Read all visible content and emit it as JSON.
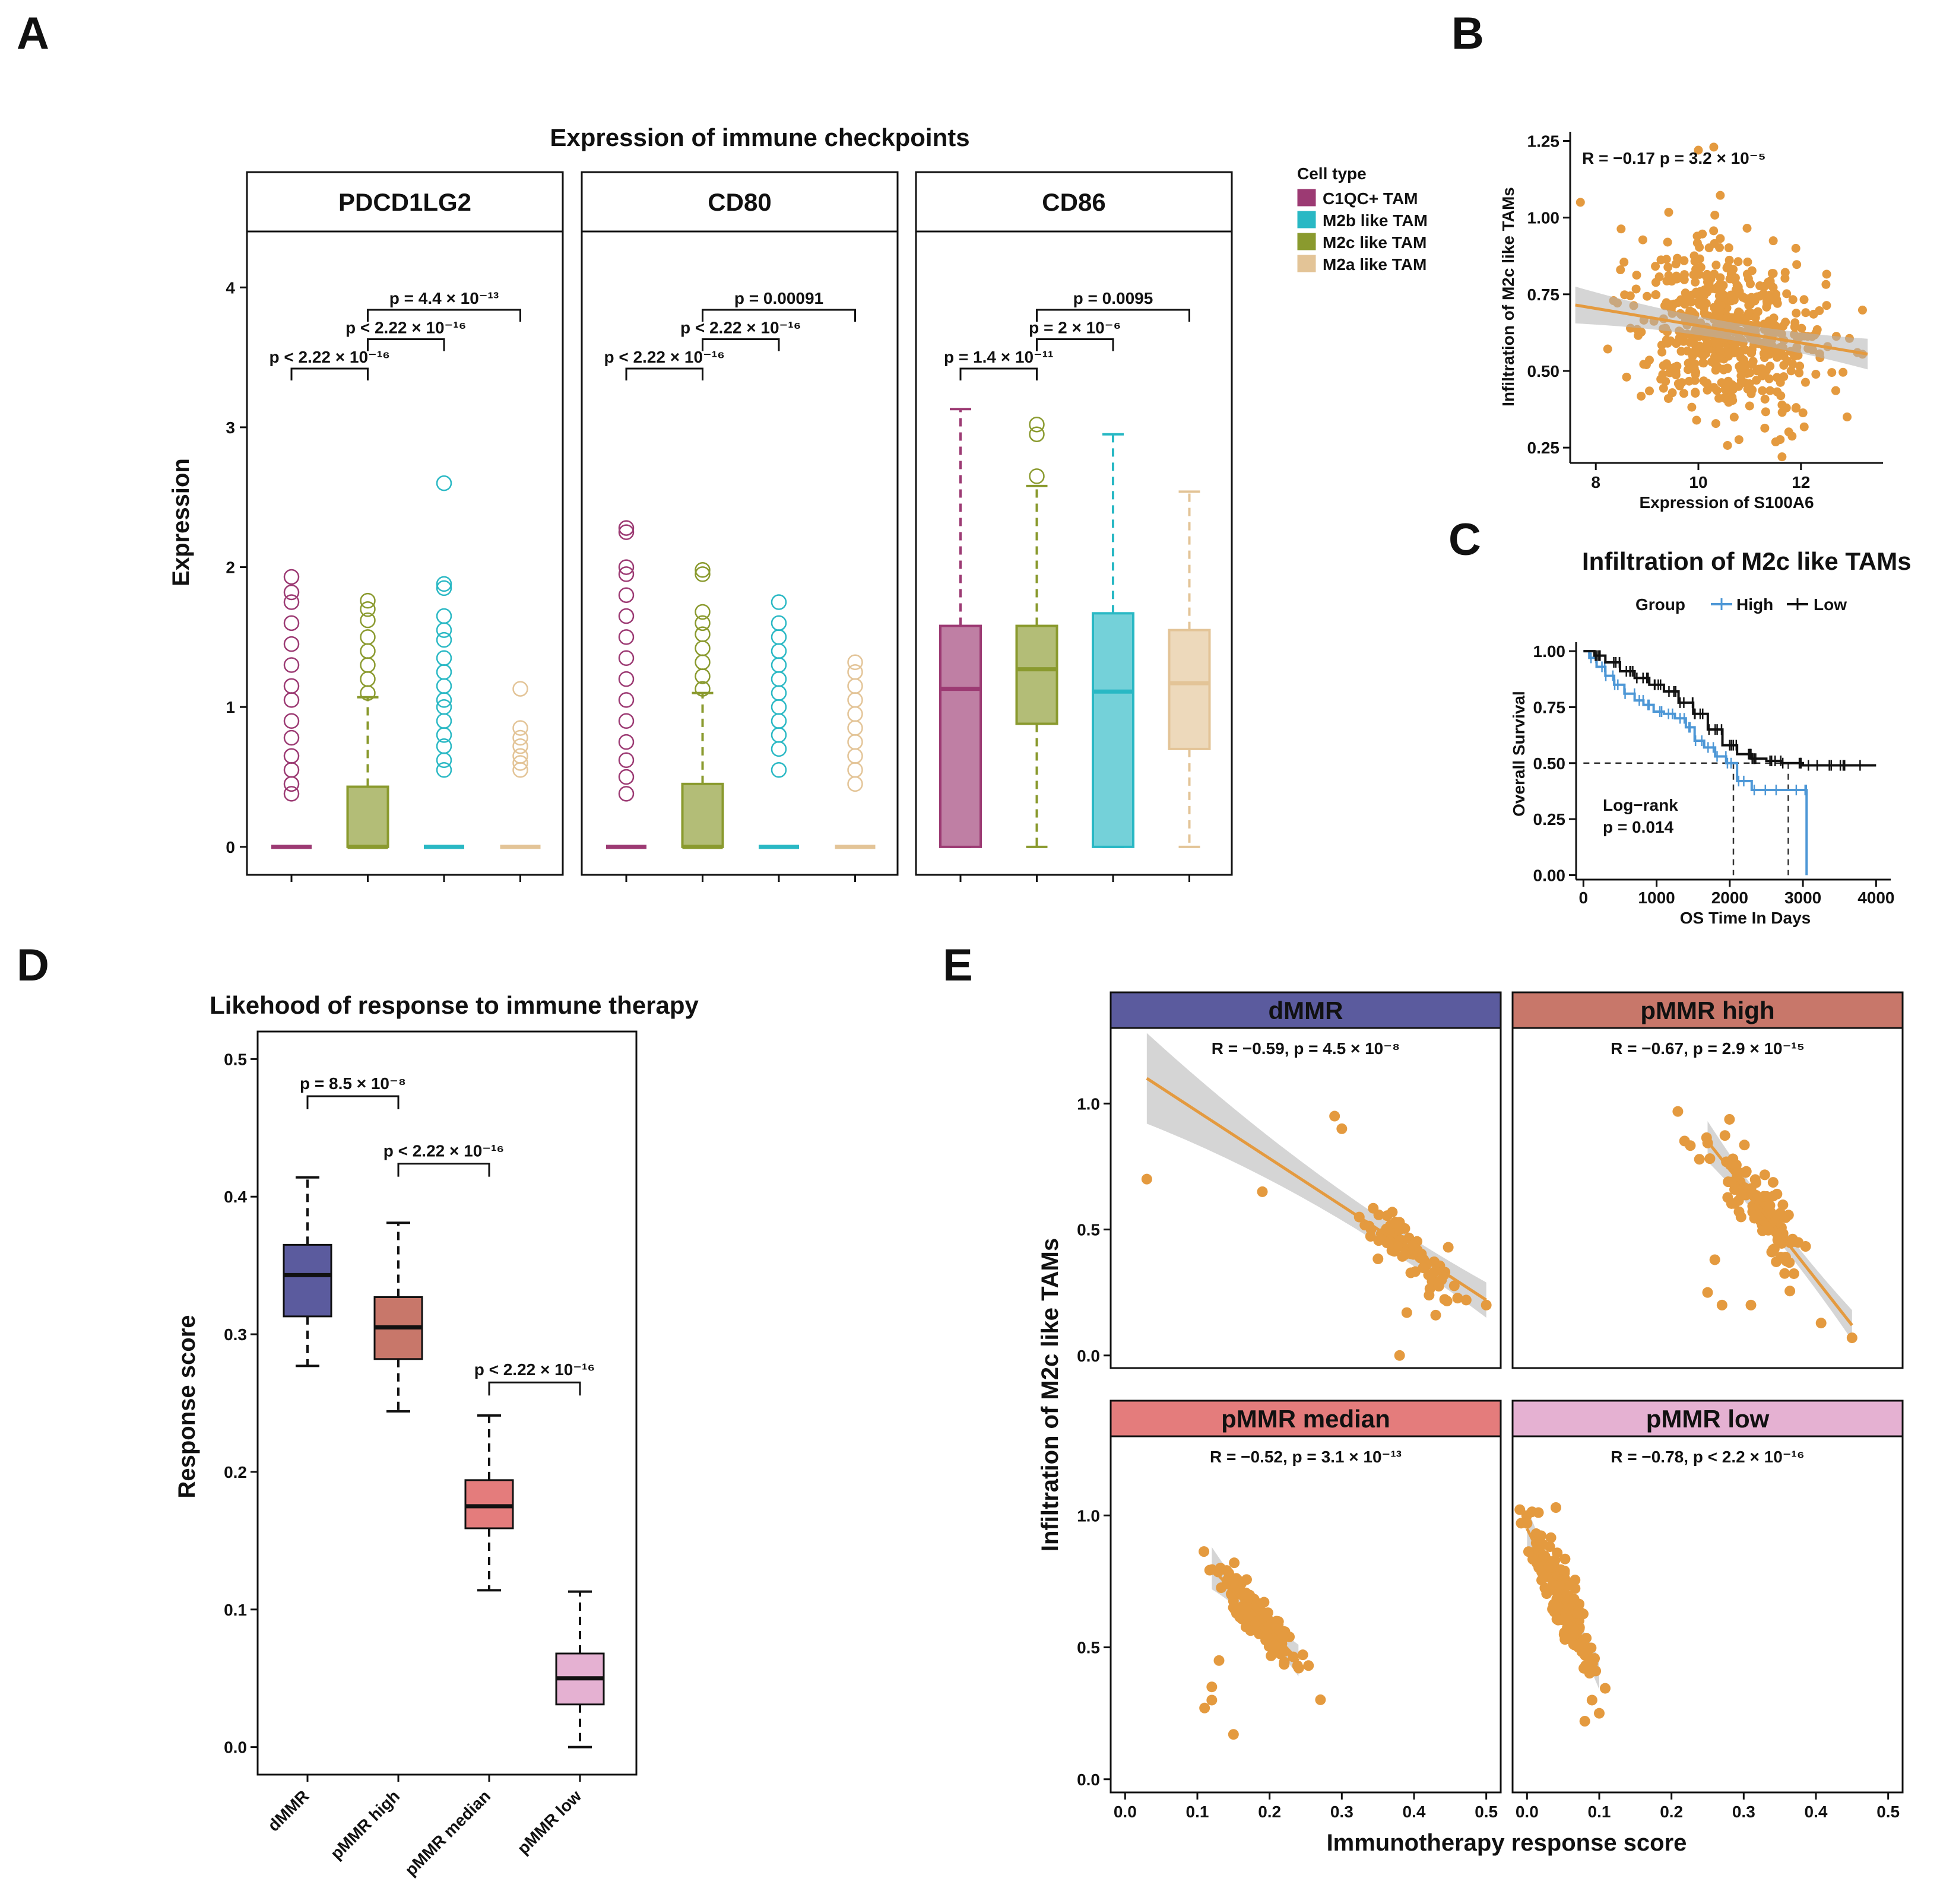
{
  "figure_title": "Multi-panel figure: immune checkpoints, M2c like TAMs, immunotherapy response",
  "colors": {
    "C1QC+ TAM": "#9c3a73",
    "M2b like TAM": "#29b8c4",
    "M2c like TAM": "#8a9a2e",
    "M2a like TAM": "#e3c497",
    "point_orange": "#e49a3f",
    "km_high": "#4d97d6",
    "km_low": "#111111",
    "dMMR": "#5b5b9e",
    "pMMR high": "#c8776a",
    "pMMR median": "#e47c7c",
    "pMMR low": "#e5b1d2"
  },
  "chart_data": [
    {
      "id": "A",
      "type": "box",
      "panel_letter": "A",
      "title": "Expression of immune checkpoints",
      "ylabel": "Expression",
      "ylim": [
        -0.2,
        4.4
      ],
      "yticks": [
        0,
        1,
        2,
        3,
        4
      ],
      "legend": {
        "title": "Cell type",
        "entries": [
          "C1QC+ TAM",
          "M2b like TAM",
          "M2c like TAM",
          "M2a like TAM"
        ]
      },
      "groups_order": [
        "C1QC+ TAM",
        "M2c like TAM",
        "M2b like TAM",
        "M2a like TAM"
      ],
      "facets": [
        {
          "name": "PDCD1LG2",
          "boxes": [
            {
              "group": "C1QC+ TAM",
              "min": 0,
              "q1": 0,
              "median": 0,
              "q3": 0,
              "max": 0,
              "outliers": [
                0.38,
                0.45,
                0.55,
                0.65,
                0.78,
                0.9,
                1.05,
                1.15,
                1.3,
                1.45,
                1.6,
                1.75,
                1.82,
                1.93
              ]
            },
            {
              "group": "M2c like TAM",
              "min": 0,
              "q1": 0,
              "median": 0,
              "q3": 0.43,
              "max": 1.07,
              "outliers": [
                1.1,
                1.2,
                1.3,
                1.4,
                1.5,
                1.62,
                1.7,
                1.76
              ]
            },
            {
              "group": "M2b like TAM",
              "min": 0,
              "q1": 0,
              "median": 0,
              "q3": 0,
              "max": 0,
              "outliers": [
                0.55,
                0.62,
                0.72,
                0.8,
                0.9,
                1.0,
                1.05,
                1.15,
                1.25,
                1.35,
                1.48,
                1.55,
                1.65,
                1.85,
                1.88,
                2.6
              ]
            },
            {
              "group": "M2a like TAM",
              "min": 0,
              "q1": 0,
              "median": 0,
              "q3": 0,
              "max": 0,
              "outliers": [
                0.55,
                0.6,
                0.65,
                0.72,
                0.78,
                0.85,
                1.13
              ]
            }
          ],
          "comparisons": [
            {
              "from": 0,
              "to": 1,
              "label": "p < 2.22 × 10⁻¹⁶",
              "y": 3.42
            },
            {
              "from": 1,
              "to": 2,
              "label": "p < 2.22 × 10⁻¹⁶",
              "y": 3.63
            },
            {
              "from": 1,
              "to": 3,
              "label": "p = 4.4 × 10⁻¹³",
              "y": 3.84
            }
          ]
        },
        {
          "name": "CD80",
          "boxes": [
            {
              "group": "C1QC+ TAM",
              "min": 0,
              "q1": 0,
              "median": 0,
              "q3": 0,
              "max": 0,
              "outliers": [
                0.38,
                0.5,
                0.62,
                0.75,
                0.9,
                1.05,
                1.2,
                1.35,
                1.5,
                1.65,
                1.8,
                1.95,
                2.0,
                2.25,
                2.28
              ]
            },
            {
              "group": "M2c like TAM",
              "min": 0,
              "q1": 0,
              "median": 0,
              "q3": 0.45,
              "max": 1.1,
              "outliers": [
                1.13,
                1.22,
                1.32,
                1.42,
                1.52,
                1.6,
                1.68,
                1.95,
                1.98
              ]
            },
            {
              "group": "M2b like TAM",
              "min": 0,
              "q1": 0,
              "median": 0,
              "q3": 0,
              "max": 0,
              "outliers": [
                0.55,
                0.7,
                0.8,
                0.9,
                1.0,
                1.1,
                1.2,
                1.3,
                1.4,
                1.5,
                1.6,
                1.75
              ]
            },
            {
              "group": "M2a like TAM",
              "min": 0,
              "q1": 0,
              "median": 0,
              "q3": 0,
              "max": 0,
              "outliers": [
                0.45,
                0.55,
                0.65,
                0.75,
                0.85,
                0.95,
                1.05,
                1.15,
                1.25,
                1.32
              ]
            }
          ],
          "comparisons": [
            {
              "from": 0,
              "to": 1,
              "label": "p < 2.22 × 10⁻¹⁶",
              "y": 3.42
            },
            {
              "from": 1,
              "to": 2,
              "label": "p < 2.22 × 10⁻¹⁶",
              "y": 3.63
            },
            {
              "from": 1,
              "to": 3,
              "label": "p = 0.00091",
              "y": 3.84
            }
          ]
        },
        {
          "name": "CD86",
          "boxes": [
            {
              "group": "C1QC+ TAM",
              "min": 0,
              "q1": 0,
              "median": 1.13,
              "q3": 1.58,
              "max": 3.13,
              "outliers": []
            },
            {
              "group": "M2c like TAM",
              "min": 0,
              "q1": 0.88,
              "median": 1.27,
              "q3": 1.58,
              "max": 2.58,
              "outliers": [
                2.65,
                2.95,
                3.02
              ]
            },
            {
              "group": "M2b like TAM",
              "min": 0,
              "q1": 0,
              "median": 1.11,
              "q3": 1.67,
              "max": 2.95,
              "outliers": []
            },
            {
              "group": "M2a like TAM",
              "min": 0,
              "q1": 0.7,
              "median": 1.17,
              "q3": 1.55,
              "max": 2.54,
              "outliers": []
            }
          ],
          "comparisons": [
            {
              "from": 0,
              "to": 1,
              "label": "p = 1.4 × 10⁻¹¹",
              "y": 3.42
            },
            {
              "from": 1,
              "to": 2,
              "label": "p = 2 × 10⁻⁶",
              "y": 3.63
            },
            {
              "from": 1,
              "to": 3,
              "label": "p = 0.0095",
              "y": 3.84
            }
          ]
        }
      ]
    },
    {
      "id": "B",
      "type": "scatter",
      "panel_letter": "B",
      "xlabel": "Expression of S100A6",
      "ylabel": "Infiltration of M2c like TAMs",
      "xlim": [
        7.5,
        13.6
      ],
      "ylim": [
        0.2,
        1.28
      ],
      "xticks": [
        8,
        10,
        12
      ],
      "yticks": [
        0.25,
        0.5,
        0.75,
        1.0
      ],
      "ytick_labels": [
        "0.25",
        "0.50",
        "0.75",
        "1.00",
        "1.25"
      ],
      "yticks_all": [
        0.25,
        0.5,
        0.75,
        1.0,
        1.25
      ],
      "stat": "R = −0.17 p = 3.2 × 10⁻⁵",
      "fit": {
        "x0": 7.6,
        "y0": 0.715,
        "x1": 13.3,
        "y1": 0.555
      },
      "ci": {
        "start_half_width": 0.06,
        "mid_half_width": 0.015,
        "end_half_width": 0.05
      },
      "points": {
        "n": 560,
        "x_center": 10.6,
        "x_sd": 0.9,
        "y_center": 0.63,
        "y_sd": 0.15
      },
      "extra_points": [
        [
          7.7,
          1.05
        ],
        [
          8.6,
          0.48
        ],
        [
          9.4,
          0.92
        ],
        [
          10.0,
          1.22
        ],
        [
          10.3,
          1.23
        ],
        [
          12.9,
          0.35
        ],
        [
          13.1,
          0.56
        ]
      ]
    },
    {
      "id": "C",
      "type": "line",
      "subtype": "kaplan-meier",
      "panel_letter": "C",
      "title": "Infiltration of M2c like TAMs",
      "legend_title": "Group",
      "legend_entries": [
        "High",
        "Low"
      ],
      "xlabel": "OS Time In Days",
      "ylabel": "Overall Survival",
      "xlim": [
        -100,
        4200
      ],
      "ylim": [
        -0.02,
        1.04
      ],
      "xticks": [
        0,
        1000,
        2000,
        3000,
        4000
      ],
      "yticks": [
        0.0,
        0.25,
        0.5,
        0.75,
        1.0
      ],
      "ytick_labels": [
        "0.00",
        "0.25",
        "0.50",
        "0.75",
        "1.00"
      ],
      "annotation": [
        "Log−rank",
        "p = 0.014"
      ],
      "median_lines": [
        {
          "x": 2050
        },
        {
          "x": 2800
        }
      ],
      "series": [
        {
          "name": "High",
          "x": [
            0,
            80,
            180,
            300,
            420,
            560,
            700,
            820,
            960,
            1100,
            1250,
            1400,
            1520,
            1650,
            1800,
            1950,
            2100,
            2300,
            2600,
            3000,
            3050
          ],
          "y": [
            1.0,
            0.97,
            0.93,
            0.89,
            0.85,
            0.81,
            0.78,
            0.76,
            0.73,
            0.72,
            0.7,
            0.66,
            0.6,
            0.57,
            0.53,
            0.5,
            0.42,
            0.38,
            0.38,
            0.38,
            0.0
          ]
        },
        {
          "name": "Low",
          "x": [
            0,
            150,
            300,
            500,
            700,
            900,
            1100,
            1300,
            1500,
            1700,
            1900,
            2100,
            2300,
            2500,
            2700,
            3000,
            3500,
            4000
          ],
          "y": [
            1.0,
            0.98,
            0.95,
            0.91,
            0.88,
            0.85,
            0.82,
            0.77,
            0.72,
            0.65,
            0.58,
            0.54,
            0.52,
            0.51,
            0.5,
            0.49,
            0.49,
            0.49
          ]
        }
      ]
    },
    {
      "id": "D",
      "type": "box",
      "panel_letter": "D",
      "title": "Likehood of response to immune therapy",
      "ylabel": "Response score",
      "ylim": [
        -0.02,
        0.52
      ],
      "yticks": [
        0.0,
        0.1,
        0.2,
        0.3,
        0.4,
        0.5
      ],
      "ytick_labels": [
        "0.0",
        "0.1",
        "0.2",
        "0.3",
        "0.4",
        "0.5"
      ],
      "categories": [
        "dMMR",
        "pMMR high",
        "pMMR median",
        "pMMR low"
      ],
      "boxes": [
        {
          "group": "dMMR",
          "min": 0.277,
          "q1": 0.313,
          "median": 0.343,
          "q3": 0.365,
          "max": 0.414
        },
        {
          "group": "pMMR high",
          "min": 0.244,
          "q1": 0.282,
          "median": 0.305,
          "q3": 0.327,
          "max": 0.381
        },
        {
          "group": "pMMR median",
          "min": 0.114,
          "q1": 0.159,
          "median": 0.175,
          "q3": 0.194,
          "max": 0.241
        },
        {
          "group": "pMMR low",
          "min": 0.0,
          "q1": 0.031,
          "median": 0.05,
          "q3": 0.068,
          "max": 0.113
        }
      ],
      "comparisons": [
        {
          "from": 0,
          "to": 1,
          "label": "p = 8.5 × 10⁻⁸",
          "y": 0.473
        },
        {
          "from": 1,
          "to": 2,
          "label": "p < 2.22 × 10⁻¹⁶",
          "y": 0.424
        },
        {
          "from": 2,
          "to": 3,
          "label": "p < 2.22 × 10⁻¹⁶",
          "y": 0.265
        }
      ]
    },
    {
      "id": "E",
      "type": "scatter",
      "panel_letter": "E",
      "xlabel": "Immunotherapy response score",
      "ylabel": "Infiltration of M2c like TAMs",
      "xlim": [
        -0.02,
        0.52
      ],
      "ylim": [
        -0.05,
        1.3
      ],
      "xticks": [
        0.0,
        0.1,
        0.2,
        0.3,
        0.4,
        0.5
      ],
      "xtick_labels": [
        "0.0",
        "0.1",
        "0.2",
        "0.3",
        "0.4",
        "0.5"
      ],
      "yticks": [
        0.0,
        0.5,
        1.0
      ],
      "ytick_labels": [
        "0.0",
        "0.5",
        "1.0"
      ],
      "facets": [
        {
          "name": "dMMR",
          "stat": "R = −0.59, p = 4.5 × 10⁻⁸",
          "fit": {
            "x0": 0.03,
            "y0": 1.1,
            "x1": 0.5,
            "y1": 0.22
          },
          "points_spec": {
            "n": 70,
            "x_center": 0.39,
            "x_sd": 0.035,
            "y_center": 0.5,
            "y_sd": 0.12
          },
          "extra_points": [
            [
              0.03,
              0.7
            ],
            [
              0.19,
              0.65
            ],
            [
              0.29,
              0.95
            ],
            [
              0.3,
              0.9
            ],
            [
              0.38,
              0.0
            ],
            [
              0.39,
              0.17
            ],
            [
              0.43,
              0.16
            ],
            [
              0.5,
              0.2
            ]
          ]
        },
        {
          "name": "pMMR high",
          "stat": "R = −0.67, p = 2.9 × 10⁻¹⁵",
          "fit": {
            "x0": 0.25,
            "y0": 0.85,
            "x1": 0.45,
            "y1": 0.12
          },
          "points_spec": {
            "n": 110,
            "x_center": 0.32,
            "x_sd": 0.035,
            "y_center": 0.6,
            "y_sd": 0.15
          },
          "extra_points": [
            [
              0.25,
              0.25
            ],
            [
              0.26,
              0.38
            ],
            [
              0.27,
              0.2
            ],
            [
              0.31,
              0.2
            ],
            [
              0.45,
              0.07
            ]
          ]
        },
        {
          "name": "pMMR median",
          "stat": "R = −0.52, p = 3.1 × 10⁻¹³",
          "fit": {
            "x0": 0.12,
            "y0": 0.8,
            "x1": 0.24,
            "y1": 0.45
          },
          "points_spec": {
            "n": 180,
            "x_center": 0.18,
            "x_sd": 0.025,
            "y_center": 0.63,
            "y_sd": 0.1
          },
          "extra_points": [
            [
              0.11,
              0.27
            ],
            [
              0.12,
              0.3
            ],
            [
              0.12,
              0.35
            ],
            [
              0.15,
              0.17
            ],
            [
              0.13,
              0.45
            ]
          ]
        },
        {
          "name": "pMMR low",
          "stat": "R = −0.78, p < 2.2 × 10⁻¹⁶",
          "fit": {
            "x0": 0.0,
            "y0": 0.95,
            "x1": 0.1,
            "y1": 0.4
          },
          "points_spec": {
            "n": 200,
            "x_center": 0.05,
            "x_sd": 0.022,
            "y_center": 0.66,
            "y_sd": 0.14
          },
          "extra_points": [
            [
              0.08,
              0.22
            ],
            [
              0.1,
              0.25
            ],
            [
              0.09,
              0.3
            ],
            [
              0.04,
              1.03
            ],
            [
              0.0,
              0.97
            ]
          ]
        }
      ]
    }
  ]
}
